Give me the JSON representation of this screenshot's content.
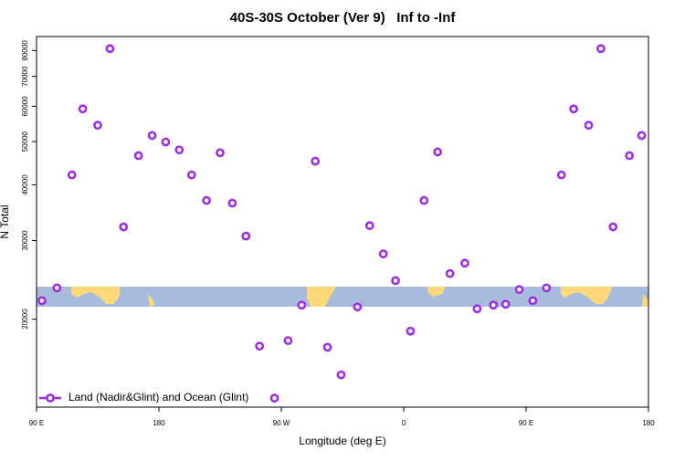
{
  "chart_data": {
    "type": "scatter",
    "title": "40S-30S October (Ver 9)   Inf to -Inf",
    "x_label": "Longitude (deg E)",
    "y_label": "N Total",
    "yscale": "log",
    "xlim": [
      90,
      540
    ],
    "xticks": [
      {
        "value": 90,
        "label": "90 E"
      },
      {
        "value": 180,
        "label": "180"
      },
      {
        "value": 270,
        "label": "90 W"
      },
      {
        "value": 360,
        "label": "0"
      },
      {
        "value": 450,
        "label": "90 E"
      },
      {
        "value": 540,
        "label": "180"
      }
    ],
    "ylim": [
      12700,
      86000
    ],
    "yticks": [
      20000,
      30000,
      40000,
      50000,
      60000,
      70000,
      80000
    ],
    "legend_position": "lower left",
    "series": [
      {
        "name": "Land (Nadir&Glint) and Ocean (Glint)",
        "color": "#9b30e0",
        "x": [
          94,
          105,
          116,
          124,
          135,
          144,
          154,
          165,
          175,
          185,
          195,
          204,
          215,
          225,
          234,
          244,
          254,
          265,
          275,
          285,
          295,
          304,
          314,
          326,
          335,
          345,
          354,
          365,
          375,
          385,
          394,
          405,
          414,
          426,
          435,
          445,
          455,
          465,
          476,
          485,
          496,
          505,
          514,
          526,
          535
        ],
        "values": [
          22000,
          23500,
          42100,
          59200,
          54400,
          80800,
          32200,
          46500,
          51600,
          49900,
          47900,
          42100,
          36900,
          47200,
          36400,
          30700,
          17400,
          13300,
          17900,
          21500,
          45200,
          17300,
          15000,
          21300,
          32400,
          28000,
          24400,
          18800,
          36900,
          47400,
          25300,
          26700,
          21100,
          21500,
          21600,
          23300,
          22000,
          23500,
          42100,
          59200,
          54400,
          80800,
          32200,
          46500,
          51600
        ]
      }
    ]
  }
}
